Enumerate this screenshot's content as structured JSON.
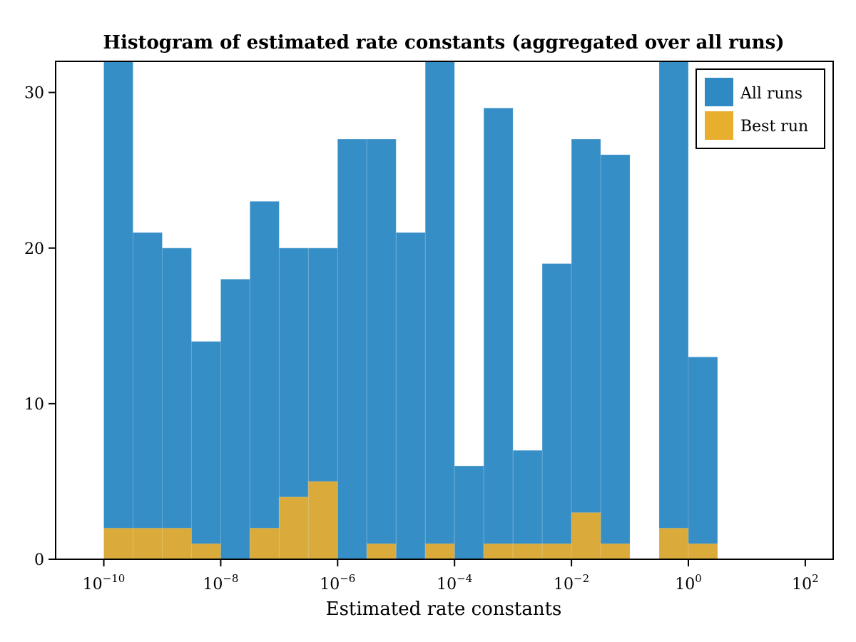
{
  "chart_data": {
    "type": "bar",
    "title": "Histogram of estimated rate constants (aggregated over all runs)",
    "xlabel": "Estimated rate constants",
    "ylabel": "",
    "x_scale": "log10",
    "xlim": [
      1.5e-11,
      300.0
    ],
    "ylim": [
      0,
      32
    ],
    "xticks": [
      {
        "base": "10",
        "exp": "−10",
        "value": 1e-10
      },
      {
        "base": "10",
        "exp": "−8",
        "value": 1e-08
      },
      {
        "base": "10",
        "exp": "−6",
        "value": 1e-06
      },
      {
        "base": "10",
        "exp": "−4",
        "value": 0.0001
      },
      {
        "base": "10",
        "exp": "−2",
        "value": 0.01
      },
      {
        "base": "10",
        "exp": "0",
        "value": 1
      },
      {
        "base": "10",
        "exp": "2",
        "value": 100
      }
    ],
    "yticks": [
      {
        "label": "0",
        "value": 0
      },
      {
        "label": "10",
        "value": 10
      },
      {
        "label": "20",
        "value": 20
      },
      {
        "label": "30",
        "value": 30
      }
    ],
    "bin_edges": [
      1e-10,
      3.16e-10,
      1e-09,
      3.16e-09,
      1e-08,
      3.16e-08,
      1e-07,
      3.16e-07,
      1e-06,
      3.16e-06,
      1e-05,
      3.16e-05,
      0.0001,
      0.000316,
      0.001,
      0.00316,
      0.01,
      0.0316,
      0.1,
      0.316,
      1,
      3.16
    ],
    "series": [
      {
        "name": "All runs",
        "color": "#2f8ac4",
        "values": [
          33,
          21,
          20,
          14,
          18,
          23,
          20,
          20,
          27,
          27,
          21,
          33,
          6,
          29,
          7,
          19,
          27,
          26,
          0,
          33,
          13
        ]
      },
      {
        "name": "Best run",
        "color": "#e8ae2e",
        "values": [
          2,
          2,
          2,
          1,
          0,
          2,
          4,
          5,
          0,
          1,
          0,
          1,
          0,
          1,
          1,
          1,
          3,
          1,
          0,
          2,
          1
        ]
      }
    ],
    "grid": false,
    "legend_position": "top-right"
  }
}
